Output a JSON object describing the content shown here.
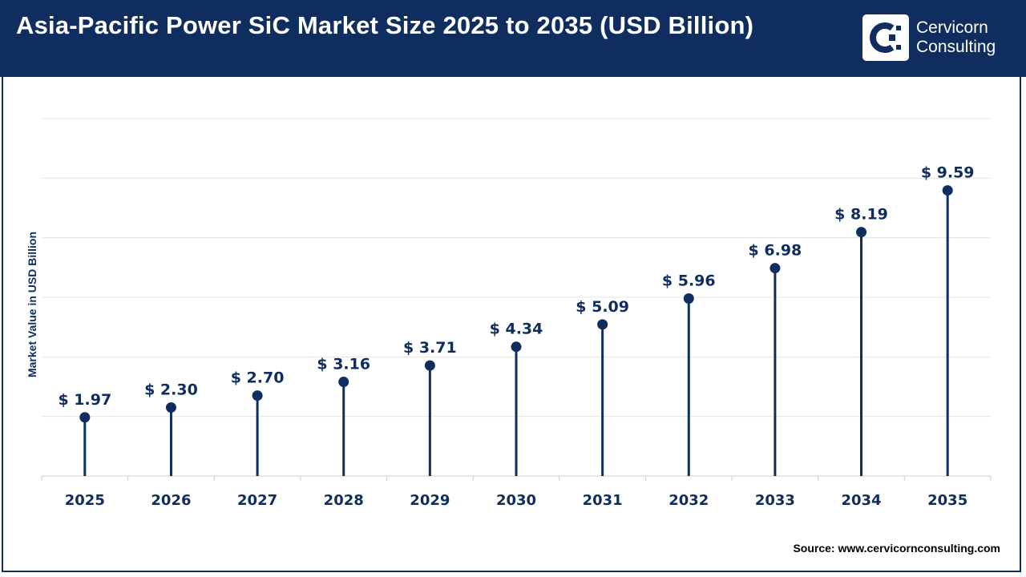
{
  "header": {
    "title": "Asia-Pacific Power SiC Market Size 2025 to 2035 (USD Billion)"
  },
  "logo": {
    "line1": "Cervicorn",
    "line2": "Consulting"
  },
  "source": "Source: www.cervicornconsulting.com",
  "colors": {
    "header_bg": "#0f2d5e",
    "series": "#0f2d5e",
    "grid": "#e4e4e4",
    "axis_text": "#0f2d5e"
  },
  "chart_data": {
    "type": "lollipop",
    "title": "Asia-Pacific Power SiC Market Size 2025 to 2035 (USD Billion)",
    "xlabel": "",
    "ylabel": "Market Value in USD Billion",
    "categories": [
      "2025",
      "2026",
      "2027",
      "2028",
      "2029",
      "2030",
      "2031",
      "2032",
      "2033",
      "2034",
      "2035"
    ],
    "values": [
      1.97,
      2.3,
      2.7,
      3.16,
      3.71,
      4.34,
      5.09,
      5.96,
      6.98,
      8.19,
      9.59
    ],
    "labels": [
      "$ 1.97",
      "$ 2.30",
      "$ 2.70",
      "$ 3.16",
      "$ 3.71",
      "$ 4.34",
      "$ 5.09",
      "$ 5.96",
      "$ 6.98",
      "$ 8.19",
      "$ 9.59"
    ],
    "ylim": [
      0,
      12
    ],
    "grid": true,
    "legend": "none"
  }
}
